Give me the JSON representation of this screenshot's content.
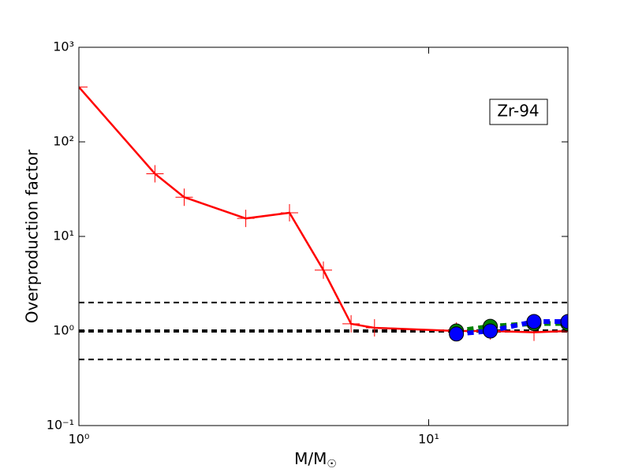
{
  "chart_data": {
    "type": "line",
    "x_label": "M/M",
    "x_label_subscript": "☉",
    "y_label": "Overproduction factor",
    "annotation": "Zr-94",
    "xscale": "log",
    "yscale": "log",
    "xlim": [
      1,
      25
    ],
    "ylim": [
      0.1,
      1000
    ],
    "xticks": [
      {
        "value": 1,
        "label": "10⁰"
      },
      {
        "value": 10,
        "label": "10¹"
      }
    ],
    "yticks": [
      {
        "value": 0.1,
        "label": "10⁻¹"
      },
      {
        "value": 1,
        "label": "10⁰"
      },
      {
        "value": 10,
        "label": "10¹"
      },
      {
        "value": 100,
        "label": "10²"
      },
      {
        "value": 1000,
        "label": "10³"
      }
    ],
    "hlines": [
      {
        "value": 2,
        "color": "#000000",
        "width": 2
      },
      {
        "value": 1,
        "color": "#000000",
        "width": 4
      },
      {
        "value": 0.5,
        "color": "#000000",
        "width": 2
      }
    ],
    "series": [
      {
        "color": "#ff0000",
        "style": "solid",
        "marker": "plus",
        "x": [
          1,
          1.65,
          2,
          3,
          4,
          5,
          6,
          7,
          12,
          15,
          20,
          25
        ],
        "values": [
          380,
          46,
          26,
          15.5,
          17.8,
          4.4,
          1.19,
          1.08,
          1.0,
          1.0,
          0.97,
          1.0
        ]
      },
      {
        "color": "#008000",
        "style": "dashed",
        "marker": "circle",
        "x": [
          12,
          15,
          20,
          25
        ],
        "values": [
          1.0,
          1.12,
          1.2,
          1.2
        ]
      },
      {
        "color": "#0000ff",
        "style": "dashed",
        "marker": "circle",
        "x": [
          12,
          15,
          20,
          25
        ],
        "values": [
          0.93,
          1.0,
          1.26,
          1.26
        ]
      }
    ]
  }
}
